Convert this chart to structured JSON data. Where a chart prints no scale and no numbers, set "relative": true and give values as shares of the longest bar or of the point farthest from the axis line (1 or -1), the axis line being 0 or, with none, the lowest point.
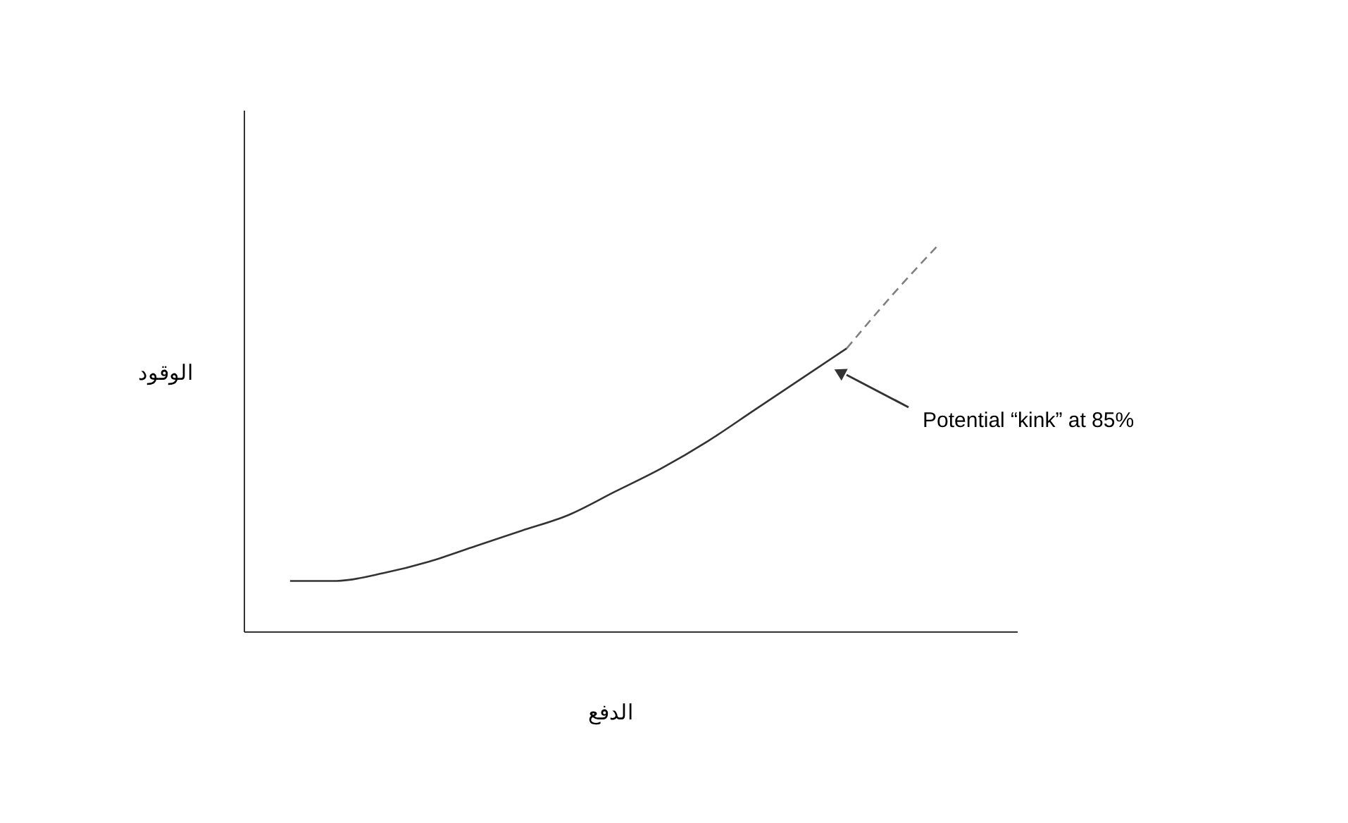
{
  "chart_data": {
    "type": "line",
    "relative": true,
    "xlabel": "الدفع",
    "ylabel": "الوقود",
    "categories": [
      null,
      null,
      null,
      null,
      null,
      null,
      null,
      null,
      null,
      null,
      null,
      null,
      null,
      null,
      null
    ],
    "series": [
      {
        "color": "#333333",
        "line_style": "solid",
        "values": [
          0.13,
          0.13,
          0.15,
          0.18,
          0.22,
          0.26,
          0.3,
          0.36,
          0.42,
          0.49,
          0.57,
          0.65,
          0.73,
          null,
          null
        ]
      },
      {
        "color": "#808080",
        "line_style": "dashed",
        "values": [
          null,
          null,
          null,
          null,
          null,
          null,
          null,
          null,
          null,
          null,
          null,
          null,
          0.73,
          0.87,
          1
        ]
      }
    ],
    "annotations": [
      "Potential “kink” at 85%"
    ]
  }
}
